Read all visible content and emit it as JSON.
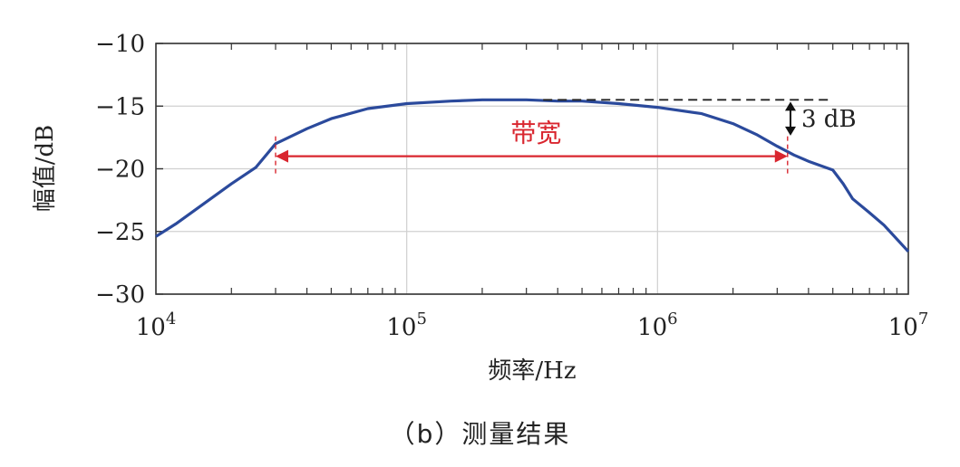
{
  "chart_data": {
    "type": "line",
    "xscale": "log",
    "xlim": [
      10000,
      10000000
    ],
    "ylim": [
      -30,
      -10
    ],
    "grid": true,
    "xlabel": "频率/Hz",
    "ylabel": "幅值/dB",
    "x_ticks": [
      {
        "value": 10000,
        "base": "10",
        "exp": "4"
      },
      {
        "value": 100000,
        "base": "10",
        "exp": "5"
      },
      {
        "value": 1000000,
        "base": "10",
        "exp": "6"
      },
      {
        "value": 10000000,
        "base": "10",
        "exp": "7"
      }
    ],
    "y_ticks": [
      {
        "value": -10,
        "label": "−10"
      },
      {
        "value": -15,
        "label": "−15"
      },
      {
        "value": -20,
        "label": "−20"
      },
      {
        "value": -25,
        "label": "−25"
      },
      {
        "value": -30,
        "label": "−30"
      }
    ],
    "series": [
      {
        "color": "#2b4a9c",
        "x": [
          10000,
          12000,
          15000,
          20000,
          25000,
          30000,
          40000,
          50000,
          70000,
          100000,
          150000,
          200000,
          300000,
          400000,
          500000,
          700000,
          1000000,
          1500000,
          2000000,
          2500000,
          3000000,
          3500000,
          4000000,
          5000000,
          5500000,
          6000000,
          7000000,
          8000000,
          10000000
        ],
        "y": [
          -25.4,
          -24.4,
          -23.0,
          -21.2,
          -19.9,
          -18.0,
          -16.8,
          -16.0,
          -15.2,
          -14.8,
          -14.6,
          -14.5,
          -14.5,
          -14.6,
          -14.6,
          -14.8,
          -15.1,
          -15.6,
          -16.4,
          -17.3,
          -18.2,
          -18.9,
          -19.4,
          -20.1,
          -21.2,
          -22.4,
          -23.5,
          -24.5,
          -26.6
        ]
      }
    ],
    "annotations": {
      "bandwidth_label": "带宽",
      "bandwidth_color": "#d9262f",
      "bandwidth_x": [
        30000,
        3300000
      ],
      "bandwidth_y": -19.0,
      "reference_y": -14.5,
      "reference_x": [
        350000,
        5000000
      ],
      "drop_label": "3 dB",
      "drop_from": -14.5,
      "drop_to": -17.5
    }
  },
  "caption": "（b）测量结果"
}
